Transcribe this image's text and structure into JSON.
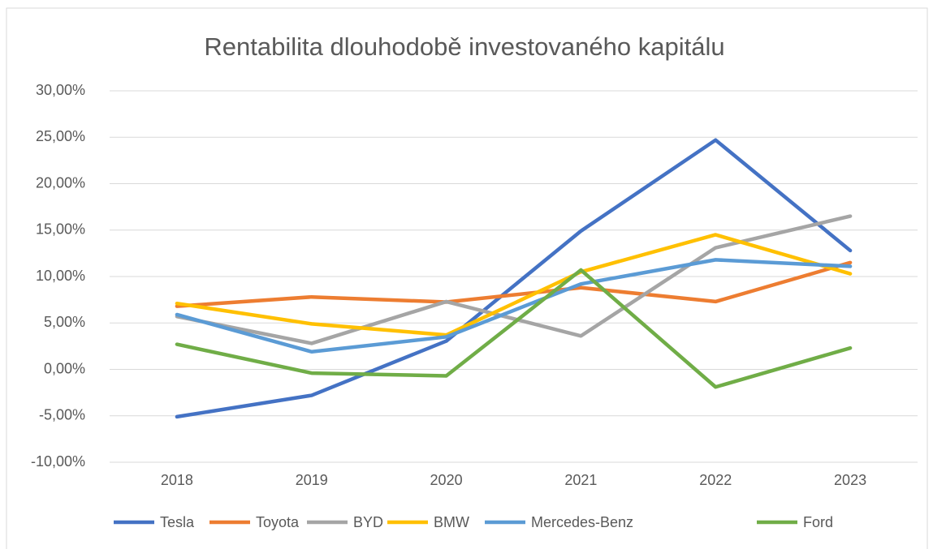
{
  "chart_data": {
    "type": "line",
    "title": "Rentabilita dlouhodobě investovaného kapitálu",
    "categories": [
      "2018",
      "2019",
      "2020",
      "2021",
      "2022",
      "2023"
    ],
    "series": [
      {
        "name": "Tesla",
        "color": "#4472c4",
        "values": [
          -5.1,
          -2.8,
          3.05,
          14.9,
          24.7,
          12.8
        ]
      },
      {
        "name": "Toyota",
        "color": "#ed7d31",
        "values": [
          6.8,
          7.8,
          7.25,
          8.8,
          7.3,
          11.5
        ]
      },
      {
        "name": "BYD",
        "color": "#a5a5a5",
        "values": [
          5.7,
          2.8,
          7.3,
          3.6,
          13.1,
          16.5
        ]
      },
      {
        "name": "BMW",
        "color": "#ffc000",
        "values": [
          7.1,
          4.9,
          3.7,
          10.5,
          14.5,
          10.3
        ]
      },
      {
        "name": "Mercedes-Benz",
        "color": "#5b9bd5",
        "values": [
          5.9,
          1.9,
          3.5,
          9.2,
          11.8,
          11.1
        ]
      },
      {
        "name": "Ford",
        "color": "#70ad47",
        "values": [
          2.7,
          -0.4,
          -0.7,
          10.7,
          -1.9,
          2.3
        ]
      }
    ],
    "ylim": [
      -10,
      30
    ],
    "yticks": [
      {
        "value": -10,
        "label": "-10,00%"
      },
      {
        "value": -5,
        "label": "-5,00%"
      },
      {
        "value": 0,
        "label": "0,00%"
      },
      {
        "value": 5,
        "label": "5,00%"
      },
      {
        "value": 10,
        "label": "10,00%"
      },
      {
        "value": 15,
        "label": "15,00%"
      },
      {
        "value": 20,
        "label": "20,00%"
      },
      {
        "value": 25,
        "label": "25,00%"
      },
      {
        "value": 30,
        "label": "30,00%"
      }
    ],
    "grid": true,
    "legend": "bottom"
  }
}
